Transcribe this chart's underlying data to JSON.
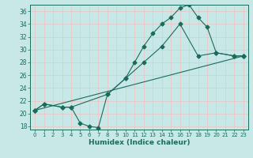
{
  "title": "",
  "xlabel": "Humidex (Indice chaleur)",
  "ylabel": "",
  "bg_color": "#c8e8e8",
  "grid_color": "#e8c8c8",
  "line_color": "#1a6b5a",
  "xlim": [
    -0.5,
    23.5
  ],
  "ylim": [
    17.5,
    37.0
  ],
  "xticks": [
    0,
    1,
    2,
    3,
    4,
    5,
    6,
    7,
    8,
    9,
    10,
    11,
    12,
    13,
    14,
    15,
    16,
    17,
    18,
    19,
    20,
    21,
    22,
    23
  ],
  "yticks": [
    18,
    20,
    22,
    24,
    26,
    28,
    30,
    32,
    34,
    36
  ],
  "line1_x": [
    0,
    1,
    3,
    4,
    5,
    6,
    7,
    8,
    10,
    11,
    12,
    13,
    14,
    15,
    16,
    17,
    18,
    19,
    20,
    22,
    23
  ],
  "line1_y": [
    20.5,
    21.5,
    21.0,
    21.0,
    18.5,
    18.0,
    17.8,
    23.0,
    25.5,
    28.0,
    30.5,
    32.5,
    34.0,
    35.0,
    36.5,
    37.0,
    35.0,
    33.5,
    29.5,
    29.0,
    29.0
  ],
  "line2_x": [
    0,
    1,
    3,
    4,
    8,
    10,
    12,
    14,
    16,
    18,
    20,
    22,
    23
  ],
  "line2_y": [
    20.5,
    21.5,
    21.0,
    21.0,
    23.0,
    25.5,
    28.0,
    30.5,
    34.0,
    29.0,
    29.5,
    29.0,
    29.0
  ],
  "line3_x": [
    0,
    23
  ],
  "line3_y": [
    20.5,
    29.0
  ]
}
